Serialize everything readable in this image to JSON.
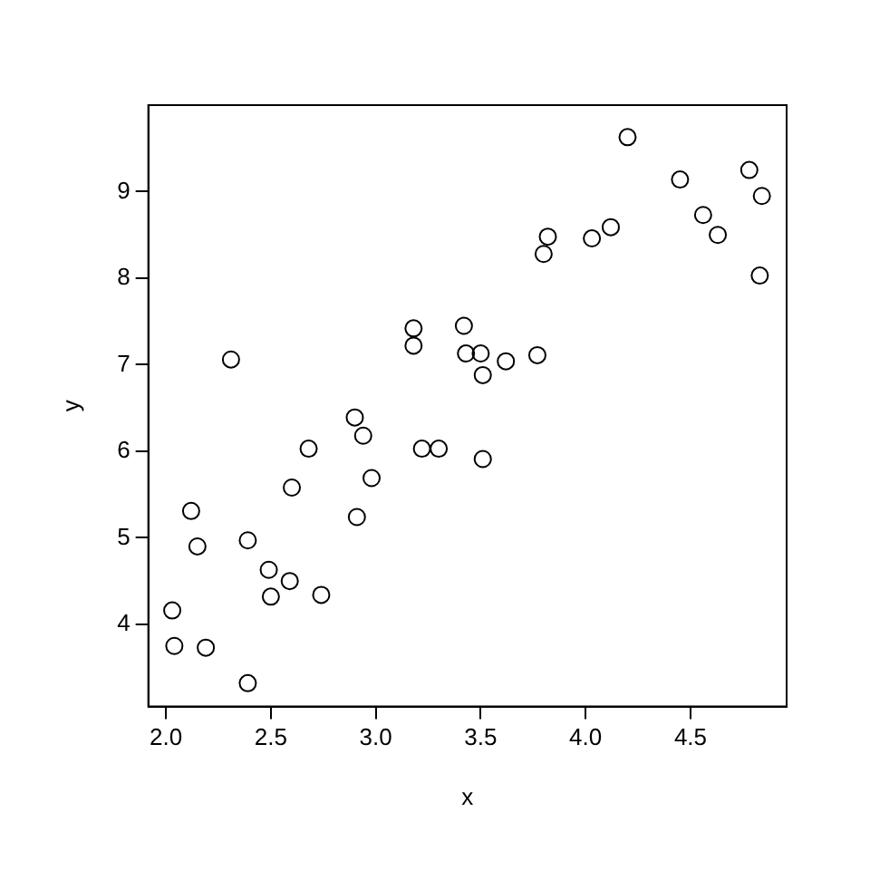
{
  "chart_data": {
    "type": "scatter",
    "xlabel": "x",
    "ylabel": "y",
    "marker": "circle",
    "grid": false,
    "legend": false,
    "xlim": [
      1.916,
      4.958
    ],
    "ylim": [
      3.05,
      10.0
    ],
    "xticks": [
      {
        "value": 2,
        "label": "2.0"
      },
      {
        "value": 2.5,
        "label": "2.5"
      },
      {
        "value": 3,
        "label": "3.0"
      },
      {
        "value": 3.5,
        "label": "3.5"
      },
      {
        "value": 4,
        "label": "4.0"
      },
      {
        "value": 4.5,
        "label": "4.5"
      }
    ],
    "yticks": [
      4,
      5,
      6,
      7,
      8,
      9
    ],
    "series": [
      {
        "color": "#000000",
        "x": [
          2.03,
          2.04,
          2.12,
          2.15,
          2.19,
          2.31,
          2.39,
          2.39,
          2.49,
          2.5,
          2.59,
          2.6,
          2.68,
          2.74,
          2.9,
          2.91,
          2.94,
          2.98,
          3.18,
          3.18,
          3.22,
          3.3,
          3.42,
          3.43,
          3.5,
          3.51,
          3.51,
          3.62,
          3.77,
          3.8,
          3.82,
          4.03,
          4.12,
          4.2,
          4.45,
          4.56,
          4.63,
          4.78,
          4.84,
          4.83
        ],
        "values": [
          4.16,
          3.75,
          5.31,
          4.9,
          3.73,
          7.06,
          3.32,
          4.97,
          4.63,
          4.32,
          4.5,
          5.58,
          6.03,
          4.34,
          6.39,
          5.24,
          6.18,
          5.69,
          7.42,
          7.22,
          6.03,
          6.03,
          7.45,
          7.13,
          7.13,
          6.88,
          5.91,
          7.04,
          7.11,
          8.28,
          8.48,
          8.46,
          8.59,
          9.63,
          9.14,
          8.73,
          8.5,
          9.25,
          8.95,
          8.03
        ]
      }
    ]
  }
}
